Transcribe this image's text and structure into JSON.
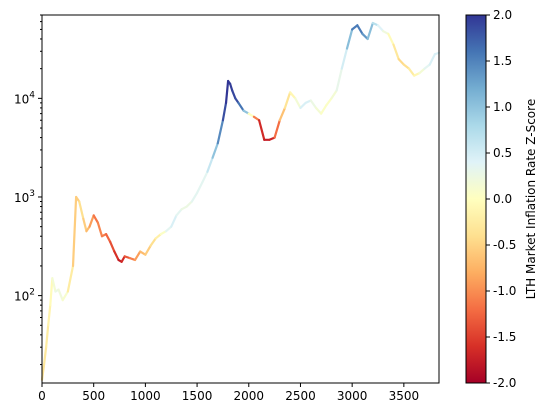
{
  "chart_data": {
    "type": "line",
    "title": "",
    "xlabel": "",
    "ylabel": "",
    "xlim": [
      0,
      3840
    ],
    "ylim": [
      13,
      70000
    ],
    "yscale": "log",
    "grid": false,
    "x_ticks": [
      0,
      500,
      1000,
      1500,
      2000,
      2500,
      3000,
      3500
    ],
    "y_ticks": [
      {
        "value": 100,
        "base": "10",
        "exp": "2"
      },
      {
        "value": 1000,
        "base": "10",
        "exp": "3"
      },
      {
        "value": 10000,
        "base": "10",
        "exp": "4"
      }
    ],
    "colorbar": {
      "label": "LTH Market Inflation Rate Z-Score",
      "range": [
        -2.0,
        2.0
      ],
      "ticks": [
        "-2.0",
        "-1.5",
        "-1.0",
        "-0.5",
        "0.0",
        "0.5",
        "1.0",
        "1.5",
        "2.0"
      ],
      "colormap": "RdYlBu",
      "stops": [
        "#a50026",
        "#d73027",
        "#f46d43",
        "#fdae61",
        "#fee090",
        "#ffffbf",
        "#e0f3f8",
        "#abd9e9",
        "#74add1",
        "#4575b4",
        "#313695"
      ]
    },
    "series": [
      {
        "x": [
          0,
          20,
          40,
          60,
          80,
          100,
          130,
          160,
          200,
          250,
          300,
          330,
          360,
          400,
          430,
          460,
          500,
          540,
          580,
          620,
          660,
          700,
          740,
          770,
          800,
          850,
          900,
          950,
          1000,
          1050,
          1100,
          1150,
          1200,
          1250,
          1300,
          1350,
          1400,
          1450,
          1500,
          1550,
          1600,
          1650,
          1700,
          1750,
          1780,
          1800,
          1820,
          1840,
          1870,
          1900,
          1950,
          2000,
          2050,
          2100,
          2150,
          2200,
          2250,
          2300,
          2350,
          2400,
          2450,
          2500,
          2550,
          2600,
          2650,
          2700,
          2750,
          2800,
          2850,
          2900,
          2950,
          3000,
          3050,
          3100,
          3150,
          3200,
          3250,
          3300,
          3350,
          3400,
          3450,
          3500,
          3550,
          3600,
          3650,
          3700,
          3750,
          3800,
          3840
        ],
        "y": [
          14,
          20,
          30,
          50,
          80,
          150,
          110,
          115,
          90,
          110,
          200,
          1000,
          900,
          600,
          450,
          500,
          650,
          550,
          400,
          420,
          350,
          280,
          230,
          220,
          250,
          240,
          230,
          280,
          260,
          320,
          380,
          420,
          450,
          500,
          650,
          750,
          800,
          900,
          1100,
          1400,
          1800,
          2500,
          3500,
          6000,
          9000,
          15000,
          14000,
          12000,
          10000,
          9000,
          7500,
          7000,
          6500,
          6000,
          3800,
          3800,
          4000,
          6000,
          8000,
          11500,
          10000,
          8000,
          9000,
          9500,
          8000,
          7000,
          8500,
          10000,
          12000,
          20000,
          32000,
          50000,
          55000,
          45000,
          40000,
          58000,
          55000,
          48000,
          45000,
          35000,
          25000,
          22000,
          20000,
          17000,
          18000,
          20000,
          22000,
          28000,
          29000
        ],
        "z": [
          -0.4,
          -0.3,
          -0.3,
          -0.2,
          -0.1,
          0.0,
          0.3,
          0.2,
          0.2,
          0.0,
          -0.5,
          -0.6,
          -0.5,
          -0.3,
          -0.8,
          -0.6,
          -1.2,
          -1.1,
          -1.0,
          -1.2,
          -1.3,
          -1.5,
          -1.7,
          -1.8,
          -1.5,
          -1.2,
          -1.0,
          -0.8,
          -0.6,
          -0.5,
          -0.3,
          -0.1,
          0.2,
          0.5,
          0.4,
          0.3,
          0.2,
          0.3,
          0.4,
          0.3,
          0.4,
          0.8,
          1.2,
          1.7,
          2.0,
          2.0,
          2.0,
          1.9,
          1.9,
          1.8,
          1.4,
          0.6,
          -0.6,
          -1.6,
          -1.7,
          -1.8,
          -1.6,
          -0.8,
          -0.5,
          -0.2,
          0.0,
          0.3,
          0.6,
          0.3,
          0.2,
          0.1,
          0.0,
          0.1,
          0.2,
          0.4,
          0.6,
          1.5,
          1.6,
          1.5,
          1.2,
          0.9,
          0.5,
          0.3,
          0.1,
          -0.2,
          -0.4,
          -0.5,
          -0.3,
          -0.2,
          0.0,
          0.3,
          0.4,
          0.5,
          0.4
        ]
      }
    ]
  }
}
